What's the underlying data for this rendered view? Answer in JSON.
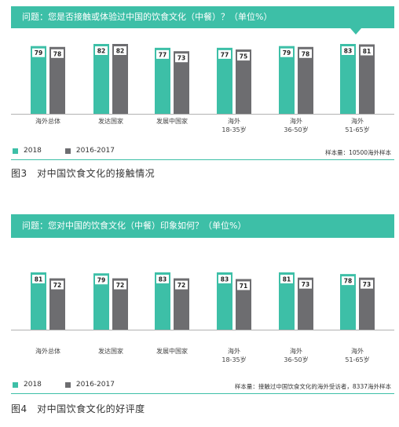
{
  "colors": {
    "teal": "#3dbfa7",
    "dark": "#6d6d70"
  },
  "legend": {
    "s2018": "2018",
    "s2016": "2016-2017"
  },
  "chart_data": [
    {
      "type": "bar",
      "title": "问题：您是否接触或体验过中国的饮食文化（中餐）？（单位%）",
      "categories": [
        "海外总体",
        "发达国家",
        "发展中国家",
        "海外\n18-35岁",
        "海外\n36-50岁",
        "海外\n51-65岁"
      ],
      "series": [
        {
          "name": "2018",
          "values": [
            79,
            82,
            77,
            77,
            79,
            83
          ]
        },
        {
          "name": "2016-2017",
          "values": [
            78,
            82,
            73,
            75,
            78,
            81
          ]
        }
      ],
      "ylim": [
        0,
        100
      ],
      "sample_note": "样本量：10500海外样本",
      "caption": "图3　对中国饮食文化的接触情况"
    },
    {
      "type": "bar",
      "title": "问题：您对中国的饮食文化（中餐）印象如何？（单位%）",
      "categories": [
        "海外总体",
        "发达国家",
        "发展中国家",
        "海外\n18-35岁",
        "海外\n36-50岁",
        "海外\n51-65岁"
      ],
      "series": [
        {
          "name": "2018",
          "values": [
            81,
            79,
            83,
            83,
            81,
            78
          ]
        },
        {
          "name": "2016-2017",
          "values": [
            72,
            72,
            72,
            71,
            73,
            73
          ]
        }
      ],
      "ylim": [
        0,
        100
      ],
      "sample_note": "样本量：接触过中国饮食文化的海外受访者，8337海外样本",
      "caption": "图4　对中国饮食文化的好评度"
    }
  ]
}
